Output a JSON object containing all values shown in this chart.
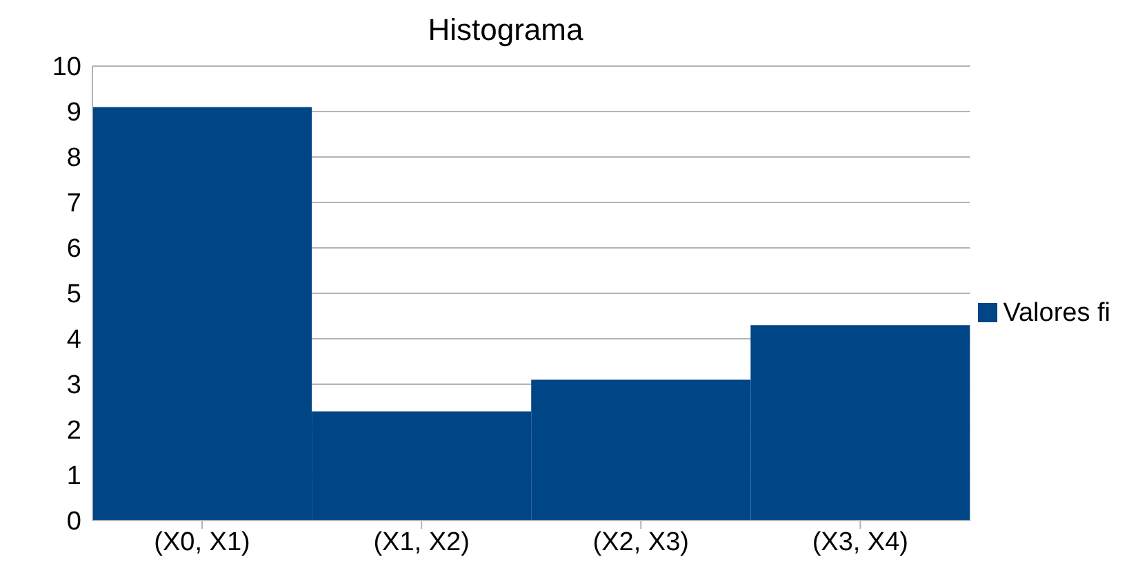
{
  "chart_data": {
    "type": "bar",
    "title": "Histograma",
    "categories": [
      "(X0, X1)",
      "(X1, X2)",
      "(X2, X3)",
      "(X3, X4)"
    ],
    "series": [
      {
        "name": "Valores fi",
        "color": "#004586",
        "values": [
          9.1,
          2.4,
          3.1,
          4.3
        ]
      }
    ],
    "ylim": [
      0,
      10
    ],
    "yticks": [
      0,
      1,
      2,
      3,
      4,
      5,
      6,
      7,
      8,
      9,
      10
    ],
    "grid": "y",
    "legend": "right"
  }
}
